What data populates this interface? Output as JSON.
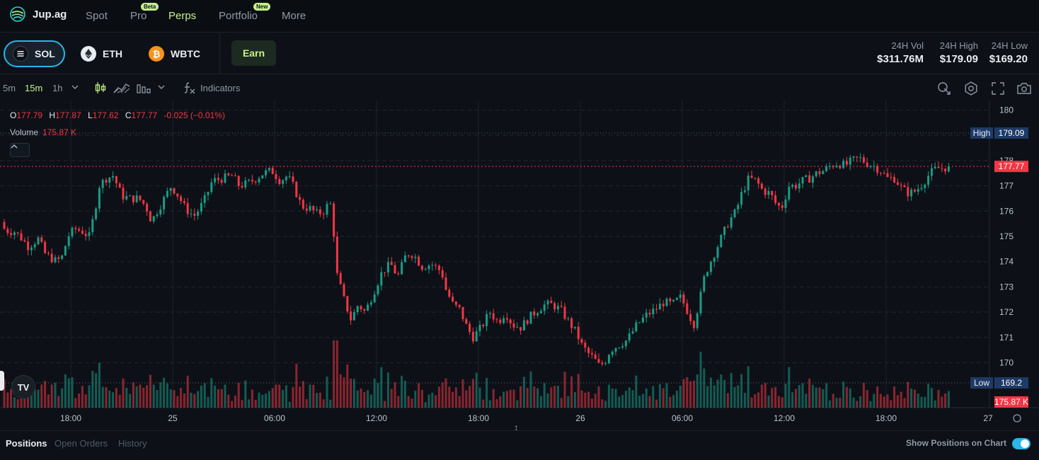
{
  "brand": {
    "name": "Jup.ag"
  },
  "nav": {
    "items": [
      {
        "label": "Spot",
        "badge": ""
      },
      {
        "label": "Pro",
        "badge": "Beta"
      },
      {
        "label": "Perps",
        "badge": "",
        "active": true
      },
      {
        "label": "Portfolio",
        "badge": "New"
      },
      {
        "label": "More",
        "badge": ""
      }
    ]
  },
  "markets": [
    {
      "symbol": "SOL",
      "active": true
    },
    {
      "symbol": "ETH",
      "active": false
    },
    {
      "symbol": "WBTC",
      "active": false
    }
  ],
  "earn_label": "Earn",
  "stats": {
    "vol": {
      "label": "24H Vol",
      "value": "$311.76M"
    },
    "high": {
      "label": "24H High",
      "value": "$179.09"
    },
    "low": {
      "label": "24H Low",
      "value": "$169.20"
    }
  },
  "toolbar": {
    "timeframes": [
      "5m",
      "15m",
      "1h"
    ],
    "active_timeframe": "15m",
    "indicators_label": "Indicators"
  },
  "chart_legend": {
    "o_key": "O",
    "o": "177.79",
    "h_key": "H",
    "h": "177.87",
    "l_key": "L",
    "l": "177.62",
    "c_key": "C",
    "c": "177.77",
    "change": "-0.025 (−0.01%)",
    "volume_label": "Volume",
    "volume": "175.87 K"
  },
  "chart_data": {
    "type": "candlestick",
    "y_ticks": [
      170,
      171,
      172,
      173,
      174,
      175,
      176,
      177,
      178,
      179,
      180
    ],
    "ylim": [
      169.05,
      180.35
    ],
    "x_tick_labels": [
      "18:00",
      "25",
      "06:00",
      "12:00",
      "18:00",
      "26",
      "06:00",
      "12:00",
      "18:00",
      "27"
    ],
    "high_label": {
      "label": "High",
      "value": "179.09"
    },
    "low_label": {
      "label": "Low",
      "value": "169.2"
    },
    "last_price": "177.77",
    "last_volume": "175.87 K",
    "up_color": "#1a9b86",
    "down_color": "#f23645",
    "path": [
      [
        0,
        176.1
      ],
      [
        6,
        175.3
      ],
      [
        12,
        175.2
      ],
      [
        20,
        175.2
      ],
      [
        28,
        175.0
      ],
      [
        40,
        174.6
      ],
      [
        54,
        174.9
      ],
      [
        64,
        174.3
      ],
      [
        80,
        174.0
      ],
      [
        88,
        174.2
      ],
      [
        96,
        175.0
      ],
      [
        106,
        175.3
      ],
      [
        116,
        175.2
      ],
      [
        126,
        175.0
      ],
      [
        134,
        176.0
      ],
      [
        140,
        177.0
      ],
      [
        150,
        177.3
      ],
      [
        160,
        177.4
      ],
      [
        172,
        176.6
      ],
      [
        184,
        176.5
      ],
      [
        196,
        176.5
      ],
      [
        206,
        176.2
      ],
      [
        214,
        175.6
      ],
      [
        222,
        176.0
      ],
      [
        232,
        176.5
      ],
      [
        242,
        177.0
      ],
      [
        252,
        176.6
      ],
      [
        262,
        176.1
      ],
      [
        274,
        175.8
      ],
      [
        282,
        176.1
      ],
      [
        290,
        176.5
      ],
      [
        300,
        177.2
      ],
      [
        316,
        177.3
      ],
      [
        328,
        177.4
      ],
      [
        338,
        177.0
      ],
      [
        350,
        177.1
      ],
      [
        362,
        177.3
      ],
      [
        372,
        177.5
      ],
      [
        384,
        177.6
      ],
      [
        396,
        177.2
      ],
      [
        406,
        177.4
      ],
      [
        416,
        176.9
      ],
      [
        426,
        176.2
      ],
      [
        438,
        176.1
      ],
      [
        448,
        175.9
      ],
      [
        458,
        176.0
      ],
      [
        466,
        176.4
      ],
      [
        470,
        175.7
      ],
      [
        476,
        173.5
      ],
      [
        486,
        172.5
      ],
      [
        496,
        171.7
      ],
      [
        506,
        172.3
      ],
      [
        516,
        172.0
      ],
      [
        528,
        172.8
      ],
      [
        540,
        173.6
      ],
      [
        552,
        173.9
      ],
      [
        562,
        173.4
      ],
      [
        574,
        174.3
      ],
      [
        584,
        174.3
      ],
      [
        596,
        173.8
      ],
      [
        610,
        173.9
      ],
      [
        624,
        173.6
      ],
      [
        630,
        172.9
      ],
      [
        640,
        172.3
      ],
      [
        650,
        172.1
      ],
      [
        658,
        171.5
      ],
      [
        668,
        171.0
      ],
      [
        680,
        171.4
      ],
      [
        692,
        172.0
      ],
      [
        704,
        171.6
      ],
      [
        714,
        172.0
      ],
      [
        724,
        171.5
      ],
      [
        736,
        171.4
      ],
      [
        748,
        171.8
      ],
      [
        760,
        172.1
      ],
      [
        770,
        172.3
      ],
      [
        780,
        172.3
      ],
      [
        792,
        172.1
      ],
      [
        804,
        171.6
      ],
      [
        814,
        171.2
      ],
      [
        822,
        170.7
      ],
      [
        830,
        170.4
      ],
      [
        838,
        170.2
      ],
      [
        846,
        169.9
      ],
      [
        854,
        170.0
      ],
      [
        862,
        170.5
      ],
      [
        874,
        170.7
      ],
      [
        886,
        170.9
      ],
      [
        900,
        171.5
      ],
      [
        914,
        171.9
      ],
      [
        926,
        172.1
      ],
      [
        938,
        172.4
      ],
      [
        950,
        172.3
      ],
      [
        962,
        172.6
      ],
      [
        972,
        172.0
      ],
      [
        980,
        171.5
      ],
      [
        988,
        172.4
      ],
      [
        996,
        173.5
      ],
      [
        1004,
        174.0
      ],
      [
        1012,
        174.5
      ],
      [
        1020,
        175.0
      ],
      [
        1030,
        175.6
      ],
      [
        1040,
        176.0
      ],
      [
        1048,
        176.7
      ],
      [
        1058,
        177.3
      ],
      [
        1068,
        177.2
      ],
      [
        1078,
        176.8
      ],
      [
        1088,
        176.7
      ],
      [
        1098,
        176.2
      ],
      [
        1106,
        176.2
      ],
      [
        1114,
        177.0
      ],
      [
        1124,
        177.0
      ],
      [
        1134,
        177.2
      ],
      [
        1144,
        177.3
      ],
      [
        1154,
        177.5
      ],
      [
        1164,
        177.6
      ],
      [
        1174,
        177.8
      ],
      [
        1184,
        177.9
      ],
      [
        1194,
        177.8
      ],
      [
        1204,
        178.0
      ],
      [
        1214,
        178.1
      ],
      [
        1224,
        177.9
      ],
      [
        1234,
        177.8
      ],
      [
        1244,
        177.6
      ],
      [
        1254,
        177.3
      ],
      [
        1264,
        177.3
      ],
      [
        1274,
        176.9
      ],
      [
        1284,
        176.7
      ],
      [
        1294,
        176.8
      ],
      [
        1304,
        177.1
      ],
      [
        1314,
        177.5
      ],
      [
        1324,
        177.7
      ],
      [
        1334,
        177.7
      ],
      [
        1340,
        177.77
      ]
    ]
  }
}
